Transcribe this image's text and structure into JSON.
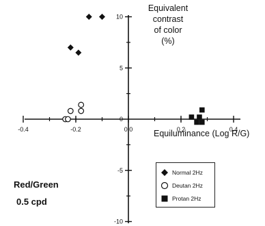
{
  "chart_data": {
    "type": "scatter",
    "ylabel_lines": [
      "Equivalent",
      "contrast",
      "of color",
      "(%)"
    ],
    "xlabel": "Equiluminance (Log R/G)",
    "xlim": [
      -0.4,
      0.4
    ],
    "ylim": [
      -10,
      10
    ],
    "x_ticks": [
      -0.4,
      -0.2,
      0.0,
      0.2,
      0.4
    ],
    "x_tick_labels": [
      "-0.4",
      "-0.2",
      "0.0",
      "0.2",
      "0.4"
    ],
    "y_ticks": [
      -10,
      -5,
      0,
      5,
      10
    ],
    "y_tick_labels": [
      "-10",
      "-5",
      "0",
      "5",
      "10"
    ],
    "series": [
      {
        "name": "Normal 2Hz",
        "marker": "diamond",
        "color": "#111111",
        "points": [
          {
            "x": -0.15,
            "y": 10.0
          },
          {
            "x": -0.1,
            "y": 10.0
          },
          {
            "x": -0.22,
            "y": 7.0
          },
          {
            "x": -0.19,
            "y": 6.5
          }
        ]
      },
      {
        "name": "Deutan 2Hz",
        "marker": "circle-open",
        "color": "#111111",
        "points": [
          {
            "x": -0.18,
            "y": 1.4
          },
          {
            "x": -0.22,
            "y": 0.8
          },
          {
            "x": -0.18,
            "y": 0.8
          },
          {
            "x": -0.24,
            "y": 0.0
          },
          {
            "x": -0.23,
            "y": 0.0
          }
        ]
      },
      {
        "name": "Protan 2Hz",
        "marker": "square",
        "color": "#111111",
        "points": [
          {
            "x": 0.28,
            "y": 0.9
          },
          {
            "x": 0.24,
            "y": 0.2
          },
          {
            "x": 0.27,
            "y": 0.2
          },
          {
            "x": 0.26,
            "y": -0.3
          },
          {
            "x": 0.28,
            "y": -0.3
          }
        ]
      }
    ],
    "condition_label_1": "Red/Green",
    "condition_label_2": "0.5 cpd",
    "legend_position": "lower-right"
  }
}
